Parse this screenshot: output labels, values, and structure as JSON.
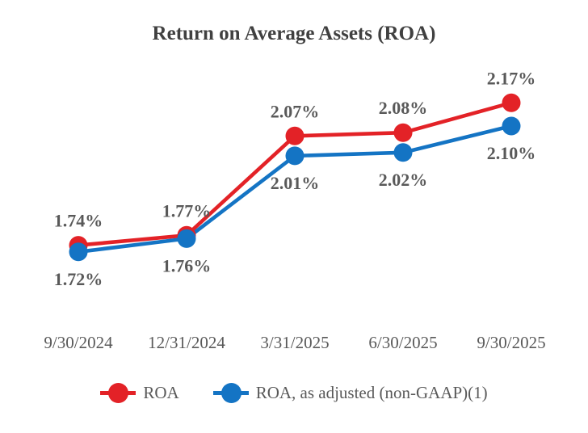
{
  "title": "Return on Average Assets (ROA)",
  "colors": {
    "roa_red": "#e32227",
    "roa_adjusted_blue": "#1474c4",
    "title_text": "#404040",
    "label_text": "#595959",
    "background": "#ffffff"
  },
  "chart_data": {
    "type": "line",
    "title": "Return on Average Assets (ROA)",
    "categories": [
      "9/30/2024",
      "12/31/2024",
      "3/31/2025",
      "6/30/2025",
      "9/30/2025"
    ],
    "series": [
      {
        "name": "ROA",
        "color": "#e32227",
        "values": [
          1.74,
          1.77,
          2.07,
          2.08,
          2.17
        ],
        "labels": [
          "1.74%",
          "1.77%",
          "2.07%",
          "2.08%",
          "2.17%"
        ],
        "label_position": "above"
      },
      {
        "name": "ROA, as adjusted (non-GAAP)(1)",
        "color": "#1474c4",
        "values": [
          1.72,
          1.76,
          2.01,
          2.02,
          2.1
        ],
        "labels": [
          "1.72%",
          "1.76%",
          "2.01%",
          "2.02%",
          "2.10%"
        ],
        "label_position": "below"
      }
    ],
    "xlabel": "",
    "ylabel": "",
    "ylim": [
      1.7,
      2.2
    ],
    "grid": false,
    "axes_visible": false,
    "legend_position": "bottom"
  }
}
